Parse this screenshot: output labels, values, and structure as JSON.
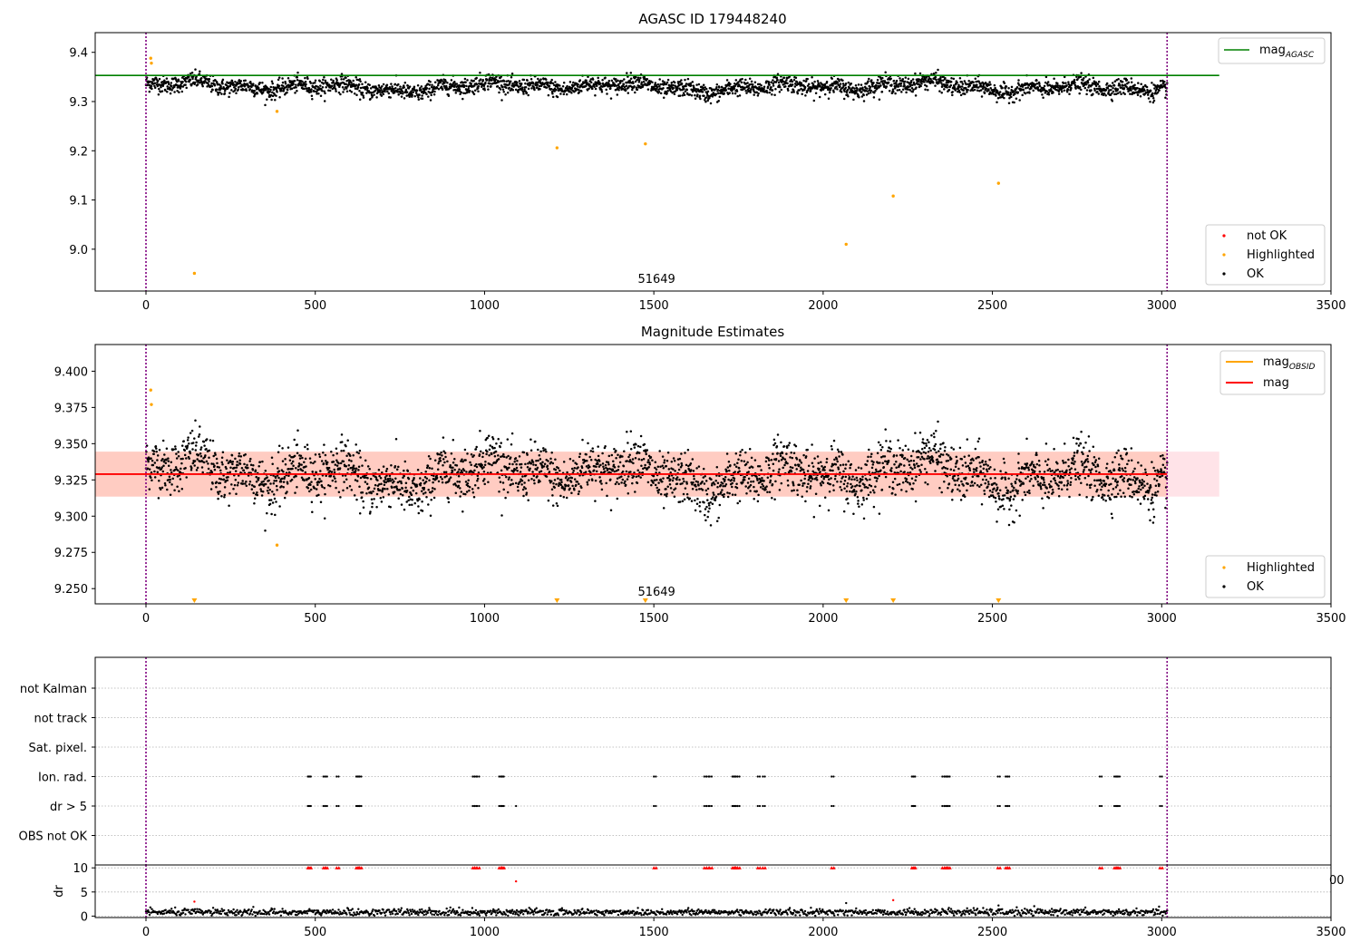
{
  "chart_data": [
    {
      "type": "scatter",
      "title": "AGASC ID 179448240",
      "xlim": [
        -150,
        3500
      ],
      "ylim": [
        8.915,
        9.44
      ],
      "xticks": [
        0,
        500,
        1000,
        1500,
        2000,
        2500,
        3000,
        3500
      ],
      "xtick_labels": [
        "0",
        "500",
        "1000",
        "1500",
        "2000",
        "2500",
        "3000",
        "3500"
      ],
      "yticks": [
        9.0,
        9.1,
        9.2,
        9.3,
        9.4
      ],
      "ytick_labels": [
        "9.0",
        "9.1",
        "9.2",
        "9.3",
        "9.4"
      ],
      "vlines": [
        0,
        3016
      ],
      "obsid_label": {
        "text": "51649",
        "x": 1500
      },
      "hline": {
        "name_base": "mag",
        "name_sub": "AGASC",
        "y": 9.353,
        "x_end": 3170,
        "color": "#008000"
      },
      "ok_points": {
        "n": 3000,
        "x_range": [
          0,
          3016
        ],
        "baseline": 9.33,
        "noise": 0.012
      },
      "highlighted_points": {
        "x": [
          14,
          16,
          143,
          387,
          1214,
          1475,
          2068,
          2207,
          2518
        ],
        "y": [
          9.388,
          9.378,
          8.951,
          9.28,
          9.206,
          9.214,
          9.01,
          9.108,
          9.134
        ]
      },
      "legend_line": "top-right",
      "legend_points": "lower-right",
      "legend_points_entries": [
        {
          "label": "not OK",
          "color": "#ff0000"
        },
        {
          "label": "Highlighted",
          "color": "#ffa500"
        },
        {
          "label": "OK",
          "color": "#000000"
        }
      ]
    },
    {
      "type": "scatter",
      "title": "Magnitude Estimates",
      "xlim": [
        -150,
        3500
      ],
      "ylim": [
        9.2395,
        9.4184
      ],
      "xticks": [
        0,
        500,
        1000,
        1500,
        2000,
        2500,
        3000,
        3500
      ],
      "xtick_labels": [
        "0",
        "500",
        "1000",
        "1500",
        "2000",
        "2500",
        "3000",
        "3500"
      ],
      "yticks": [
        9.25,
        9.275,
        9.3,
        9.325,
        9.35,
        9.375,
        9.4
      ],
      "ytick_labels": [
        "9.250",
        "9.275",
        "9.300",
        "9.325",
        "9.350",
        "9.375",
        "9.400"
      ],
      "vlines": [
        0,
        3016
      ],
      "obsid_label": {
        "text": "51649",
        "x": 1500
      },
      "mag_line": {
        "name": "mag",
        "y": 9.329,
        "x_end": 3016,
        "color": "#ff0000"
      },
      "mag_band": {
        "y_low": 9.3135,
        "y_high": 9.3445,
        "x_end": 3170
      },
      "obsid_mag": {
        "name_base": "mag",
        "name_sub": "OBSID",
        "y": 9.329,
        "color": "#ffa500"
      },
      "ok_points": {
        "n": 3000,
        "x_range": [
          0,
          3016
        ],
        "baseline": 9.329,
        "noise": 0.012
      },
      "highlighted_points": {
        "x": [
          14,
          16,
          387
        ],
        "y": [
          9.387,
          9.377,
          9.28
        ]
      },
      "below_range_markers_x": [
        143,
        1214,
        1475,
        2068,
        2207,
        2518
      ],
      "legend_lines": "top-right",
      "legend_points": "lower-right",
      "legend_points_entries": [
        {
          "label": "Highlighted",
          "color": "#ffa500"
        },
        {
          "label": "OK",
          "color": "#000000"
        }
      ]
    },
    {
      "type": "scatter",
      "title": "",
      "xlim": [
        -150,
        3500
      ],
      "categories": [
        "not Kalman",
        "not track",
        "Sat. pixel.",
        "Ion. rad.",
        "dr > 5",
        "OBS not OK"
      ],
      "vlines": [
        0,
        3016
      ],
      "flag_x": [
        478,
        481,
        524,
        529,
        563,
        621,
        625,
        630,
        965,
        970,
        978,
        1043,
        1048,
        1051,
        1500,
        1649,
        1656,
        1665,
        1732,
        1736,
        1741,
        1747,
        1807,
        1822,
        2025,
        2262,
        2266,
        2352,
        2358,
        2363,
        2368,
        2516,
        2539,
        2544,
        2817,
        2860,
        2865,
        2870,
        2995
      ],
      "flag_rows": [
        "Ion. rad.",
        "dr > 5"
      ],
      "extra_dr5_x": [
        1093
      ],
      "grid": true
    },
    {
      "type": "scatter",
      "title": "",
      "xlim": [
        -150,
        3500
      ],
      "ylim": [
        -0.3,
        10.6
      ],
      "ylabel": "dr",
      "xticks": [
        0,
        500,
        1000,
        1500,
        2000,
        2500,
        3000,
        3500
      ],
      "xtick_labels": [
        "0",
        "500",
        "1000",
        "1500",
        "2000",
        "2500",
        "3000",
        "3500"
      ],
      "yticks": [
        0,
        5,
        10
      ],
      "ytick_labels": [
        "0",
        "5",
        "10"
      ],
      "vlines": [
        0,
        3016
      ],
      "red_markers_y": 10,
      "outliers": {
        "x": [
          143,
          1093,
          2068,
          2207,
          2518
        ],
        "y": [
          3.0,
          7.2,
          2.7,
          3.3,
          2.2
        ]
      },
      "ok_points": {
        "n": 1400,
        "x_range": [
          0,
          3016
        ],
        "baseline": 0.8,
        "noise": 0.35
      },
      "stray_tick_label": "00",
      "grid": true
    }
  ]
}
